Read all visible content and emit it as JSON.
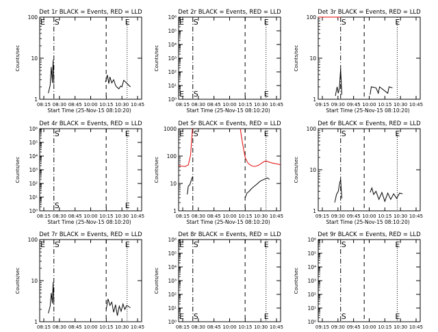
{
  "chart_data": [
    {
      "type": "line",
      "title": "Det 1r BLACK = Events, RED = LLD",
      "xlabel": "Start Time (25-Nov-15 08:10:20)",
      "ylabel": "Counts/sec",
      "yscale": "log",
      "ylim": [
        1,
        100
      ],
      "yticks": [
        {
          "v": 1,
          "l": "1"
        },
        {
          "v": 10,
          "l": "10"
        },
        {
          "v": 100,
          "l": "100"
        }
      ],
      "xlim": [
        8.12,
        10.85
      ],
      "xticks": [
        "08:15",
        "08:30",
        "08:45",
        "10:00",
        "10:15",
        "10:30",
        "10:45"
      ],
      "markers": {
        "S": 8.5,
        "mid": 9.9,
        "E": 10.46
      },
      "series": [
        {
          "color": "black",
          "segments": [
            [
              [
                8.35,
                1.4
              ],
              [
                8.4,
                2.2
              ],
              [
                8.43,
                6.1
              ],
              [
                8.46,
                2.5
              ],
              [
                8.48,
                9.1
              ],
              [
                8.5,
                2.4
              ]
            ],
            [
              [
                9.88,
                2.6
              ],
              [
                9.93,
                3.9
              ],
              [
                9.97,
                2.4
              ],
              [
                10.0,
                3.5
              ],
              [
                10.05,
                2.5
              ],
              [
                10.1,
                3.0
              ],
              [
                10.15,
                2.2
              ],
              [
                10.18,
                2.0
              ],
              [
                10.24,
                1.8
              ],
              [
                10.29,
                2.1
              ],
              [
                10.32,
                2.0
              ],
              [
                10.37,
                2.9
              ],
              [
                10.55,
                2.0
              ]
            ]
          ]
        }
      ]
    },
    {
      "type": "line",
      "title": "Det 2r BLACK = Events, RED = LLD",
      "xlabel": "Start Time (25-Nov-15 08:10:20)",
      "ylabel": "Counts/sec",
      "yscale": "log",
      "ylim": [
        1,
        1000000
      ],
      "yticks": [
        {
          "v": 1,
          "l": "10⁰"
        },
        {
          "v": 10,
          "l": "10¹"
        },
        {
          "v": 100,
          "l": "10²"
        },
        {
          "v": 1000,
          "l": "10³"
        },
        {
          "v": 10000,
          "l": "10⁴"
        },
        {
          "v": 100000,
          "l": "10⁵"
        },
        {
          "v": 1000000,
          "l": "10⁶"
        }
      ],
      "xlim": [
        8.12,
        10.85
      ],
      "xticks": [
        "08:15",
        "08:30",
        "08:45",
        "10:00",
        "10:15",
        "10:30",
        "10:45"
      ],
      "markers": {
        "S": 8.5,
        "mid": 9.9,
        "E": 10.46
      },
      "series": []
    },
    {
      "type": "line",
      "title": "Det 3r BLACK = Events, RED = LLD",
      "xlabel": "Start Time (25-Nov-15 08:10:20)",
      "ylabel": "Counts/sec",
      "yscale": "log",
      "ylim": [
        1,
        100
      ],
      "yticks": [
        {
          "v": 1,
          "l": "1"
        },
        {
          "v": 10,
          "l": "10"
        },
        {
          "v": 100,
          "l": "100"
        }
      ],
      "xlim": [
        9.12,
        10.85
      ],
      "xticks": [
        "09:15",
        "09:30",
        "09:45",
        "10:00",
        "10:15",
        "10:30",
        "10:45"
      ],
      "markers": {
        "S": 9.5,
        "mid": 9.9,
        "E": 10.46
      },
      "series": [
        {
          "color": "red",
          "segments": [
            [
              [
                9.12,
                100
              ],
              [
                9.5,
                100
              ]
            ]
          ]
        },
        {
          "color": "black",
          "segments": [
            [
              [
                9.41,
                1.2
              ],
              [
                9.44,
                2.0
              ],
              [
                9.46,
                1.4
              ],
              [
                9.48,
                1.9
              ],
              [
                9.5,
                5.5
              ],
              [
                9.52,
                1.3
              ]
            ],
            [
              [
                10.0,
                1.3
              ],
              [
                10.02,
                2.0
              ],
              [
                10.1,
                1.9
              ],
              [
                10.14,
                1.4
              ],
              [
                10.16,
                2.0
              ],
              [
                10.3,
                1.4
              ],
              [
                10.32,
                2.0
              ],
              [
                10.38,
                1.9
              ]
            ]
          ]
        }
      ]
    },
    {
      "type": "line",
      "title": "Det 4r BLACK = Events, RED = LLD",
      "xlabel": "Start Time (25-Nov-15 08:10:20)",
      "ylabel": "Counts/sec",
      "yscale": "log",
      "ylim": [
        1,
        1000000
      ],
      "yticks": [
        {
          "v": 1,
          "l": "10⁰"
        },
        {
          "v": 10,
          "l": "10¹"
        },
        {
          "v": 100,
          "l": "10²"
        },
        {
          "v": 1000,
          "l": "10³"
        },
        {
          "v": 10000,
          "l": "10⁴"
        },
        {
          "v": 100000,
          "l": "10⁵"
        },
        {
          "v": 1000000,
          "l": "10⁶"
        }
      ],
      "xlim": [
        8.12,
        10.85
      ],
      "xticks": [
        "08:15",
        "08:30",
        "08:45",
        "10:00",
        "10:15",
        "10:30",
        "10:45"
      ],
      "markers": {
        "S": 8.5,
        "mid": 9.9,
        "E": 10.46
      },
      "series": []
    },
    {
      "type": "line",
      "title": "Det 5r BLACK = Events, RED = LLD",
      "xlabel": "Start Time (25-Nov-15 08:10:20)",
      "ylabel": "Counts/sec",
      "yscale": "log",
      "ylim": [
        1,
        1000
      ],
      "yticks": [
        {
          "v": 1,
          "l": "1"
        },
        {
          "v": 10,
          "l": "10"
        },
        {
          "v": 100,
          "l": "100"
        },
        {
          "v": 1000,
          "l": "1000"
        }
      ],
      "xlim": [
        8.12,
        10.85
      ],
      "xticks": [
        "08:15",
        "08:30",
        "08:45",
        "10:00",
        "10:15",
        "10:30",
        "10:45"
      ],
      "markers": {
        "S": 8.5,
        "mid": 9.9,
        "E": 10.46
      },
      "series": [
        {
          "color": "red",
          "segments": [
            [
              [
                8.12,
                45
              ],
              [
                8.2,
                43
              ],
              [
                8.3,
                42
              ],
              [
                8.38,
                48
              ],
              [
                8.44,
                110
              ],
              [
                8.47,
                400
              ],
              [
                8.49,
                1000
              ]
            ],
            [
              [
                9.77,
                1000
              ],
              [
                9.83,
                300
              ],
              [
                9.9,
                90
              ],
              [
                9.96,
                60
              ],
              [
                10.0,
                52
              ],
              [
                10.05,
                46
              ],
              [
                10.1,
                43
              ],
              [
                10.15,
                42
              ],
              [
                10.2,
                43
              ],
              [
                10.25,
                46
              ],
              [
                10.3,
                50
              ],
              [
                10.35,
                56
              ],
              [
                10.4,
                62
              ],
              [
                10.45,
                66
              ],
              [
                10.5,
                64
              ],
              [
                10.55,
                60
              ],
              [
                10.6,
                57
              ],
              [
                10.65,
                55
              ],
              [
                10.7,
                53
              ],
              [
                10.75,
                52
              ],
              [
                10.8,
                50
              ],
              [
                10.85,
                48
              ]
            ]
          ]
        },
        {
          "color": "black",
          "segments": [
            [
              [
                8.35,
                4
              ],
              [
                8.38,
                8
              ],
              [
                8.42,
                9
              ],
              [
                8.45,
                12
              ],
              [
                8.48,
                16
              ],
              [
                8.5,
                18
              ]
            ],
            [
              [
                9.9,
                3
              ],
              [
                9.95,
                4.5
              ],
              [
                10.0,
                5
              ],
              [
                10.05,
                6
              ],
              [
                10.1,
                7
              ],
              [
                10.15,
                8
              ],
              [
                10.2,
                9
              ],
              [
                10.25,
                10.5
              ],
              [
                10.3,
                12
              ],
              [
                10.35,
                13
              ],
              [
                10.4,
                14
              ],
              [
                10.45,
                15
              ],
              [
                10.5,
                16
              ],
              [
                10.55,
                14
              ]
            ]
          ]
        }
      ]
    },
    {
      "type": "line",
      "title": "Det 6r BLACK = Events, RED = LLD",
      "xlabel": "Start Time (25-Nov-15 08:10:20)",
      "ylabel": "Counts/sec",
      "yscale": "log",
      "ylim": [
        1,
        100
      ],
      "yticks": [
        {
          "v": 1,
          "l": "1"
        },
        {
          "v": 10,
          "l": "10"
        },
        {
          "v": 100,
          "l": "100"
        }
      ],
      "xlim": [
        9.12,
        10.85
      ],
      "xticks": [
        "09:15",
        "09:30",
        "09:45",
        "10:00",
        "10:15",
        "10:30",
        "10:45"
      ],
      "markers": {
        "S": 9.5,
        "mid": 9.9,
        "E": 10.46
      },
      "series": [
        {
          "color": "black",
          "segments": [
            [
              [
                9.4,
                1.6
              ],
              [
                9.43,
                2.5
              ],
              [
                9.46,
                3.0
              ],
              [
                9.48,
                4.5
              ],
              [
                9.5,
                5.8
              ],
              [
                9.52,
                2.0
              ]
            ],
            [
              [
                10.0,
                2.8
              ],
              [
                10.03,
                3.6
              ],
              [
                10.06,
                2.5
              ],
              [
                10.1,
                3.0
              ],
              [
                10.15,
                1.9
              ],
              [
                10.2,
                2.8
              ],
              [
                10.25,
                1.7
              ],
              [
                10.3,
                2.7
              ],
              [
                10.35,
                1.9
              ],
              [
                10.4,
                2.6
              ],
              [
                10.45,
                2.0
              ],
              [
                10.5,
                2.7
              ],
              [
                10.55,
                2.6
              ]
            ]
          ]
        }
      ]
    },
    {
      "type": "line",
      "title": "Det 7r BLACK = Events, RED = LLD",
      "xlabel": "Start Time (25-Nov-15 08:10:20)",
      "ylabel": "Counts/sec",
      "yscale": "log",
      "ylim": [
        1,
        100
      ],
      "yticks": [
        {
          "v": 1,
          "l": "1"
        },
        {
          "v": 10,
          "l": "10"
        },
        {
          "v": 100,
          "l": "100"
        }
      ],
      "xlim": [
        8.12,
        10.85
      ],
      "xticks": [
        "08:15",
        "08:30",
        "08:45",
        "10:00",
        "10:15",
        "10:30",
        "10:45"
      ],
      "markers": {
        "S": 8.5,
        "mid": 9.9,
        "E": 10.46
      },
      "series": [
        {
          "color": "black",
          "segments": [
            [
              [
                8.35,
                1.6
              ],
              [
                8.4,
                2.4
              ],
              [
                8.43,
                5.0
              ],
              [
                8.46,
                2.8
              ],
              [
                8.48,
                9.2
              ],
              [
                8.5,
                2.6
              ]
            ],
            [
              [
                9.9,
                2.0
              ],
              [
                9.95,
                3.6
              ],
              [
                10.0,
                2.5
              ],
              [
                10.05,
                3.0
              ],
              [
                10.1,
                1.7
              ],
              [
                10.15,
                2.6
              ],
              [
                10.2,
                1.4
              ],
              [
                10.25,
                2.4
              ],
              [
                10.3,
                1.8
              ],
              [
                10.35,
                2.7
              ],
              [
                10.4,
                2.0
              ],
              [
                10.45,
                2.5
              ],
              [
                10.55,
                2.2
              ]
            ]
          ]
        }
      ]
    },
    {
      "type": "line",
      "title": "Det 8r BLACK = Events, RED = LLD",
      "xlabel": "Start Time (25-Nov-15 08:10:20)",
      "ylabel": "Counts/sec",
      "yscale": "log",
      "ylim": [
        1,
        1000000
      ],
      "yticks": [
        {
          "v": 1,
          "l": "10⁰"
        },
        {
          "v": 10,
          "l": "10¹"
        },
        {
          "v": 100,
          "l": "10²"
        },
        {
          "v": 1000,
          "l": "10³"
        },
        {
          "v": 10000,
          "l": "10⁴"
        },
        {
          "v": 100000,
          "l": "10⁵"
        },
        {
          "v": 1000000,
          "l": "10⁶"
        }
      ],
      "xlim": [
        8.12,
        10.85
      ],
      "xticks": [
        "08:15",
        "08:30",
        "08:45",
        "10:00",
        "10:15",
        "10:30",
        "10:45"
      ],
      "markers": {
        "S": 8.5,
        "mid": 9.9,
        "E": 10.46
      },
      "series": []
    },
    {
      "type": "line",
      "title": "Det 9r BLACK = Events, RED = LLD",
      "xlabel": "Start Time (25-Nov-15 08:10:20)",
      "ylabel": "Counts/sec",
      "yscale": "log",
      "ylim": [
        1,
        1000000
      ],
      "yticks": [
        {
          "v": 1,
          "l": "10⁰"
        },
        {
          "v": 10,
          "l": "10¹"
        },
        {
          "v": 100,
          "l": "10²"
        },
        {
          "v": 1000,
          "l": "10³"
        },
        {
          "v": 10000,
          "l": "10⁴"
        },
        {
          "v": 100000,
          "l": "10⁵"
        },
        {
          "v": 1000000,
          "l": "10⁶"
        }
      ],
      "xlim": [
        9.12,
        10.85
      ],
      "xticks": [
        "09:15",
        "09:30",
        "09:45",
        "10:00",
        "10:15",
        "10:30",
        "10:45"
      ],
      "markers": {
        "S": 9.5,
        "mid": 9.9,
        "E": 10.46
      },
      "series": []
    }
  ],
  "marker_labels": {
    "start": "S",
    "end": "E",
    "edge": "E"
  },
  "colors": {
    "black": "#000000",
    "red": "#e00000"
  }
}
